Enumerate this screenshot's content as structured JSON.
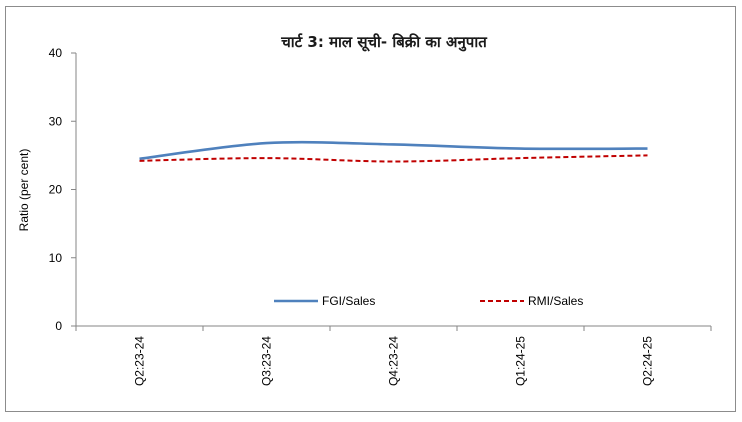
{
  "chart_data": {
    "type": "line",
    "title": "चार्ट 3: माल सूची- बिक्री का अनुपात",
    "xlabel": "",
    "ylabel": "Ratio (per cent)",
    "categories": [
      "Q2:23-24",
      "Q3:23-24",
      "Q4:23-24",
      "Q1:24-25",
      "Q2:24-25"
    ],
    "ylim": [
      0,
      40
    ],
    "yticks": [
      0,
      10,
      20,
      30,
      40
    ],
    "legend_position": "lower-center",
    "series": [
      {
        "name": "FGI/Sales",
        "values": [
          24.5,
          26.8,
          26.6,
          26.0,
          26.0
        ],
        "color": "#4f81bd",
        "style": "solid"
      },
      {
        "name": "RMI/Sales",
        "values": [
          24.2,
          24.6,
          24.1,
          24.6,
          25.0
        ],
        "color": "#c00000",
        "style": "dashed"
      }
    ]
  }
}
